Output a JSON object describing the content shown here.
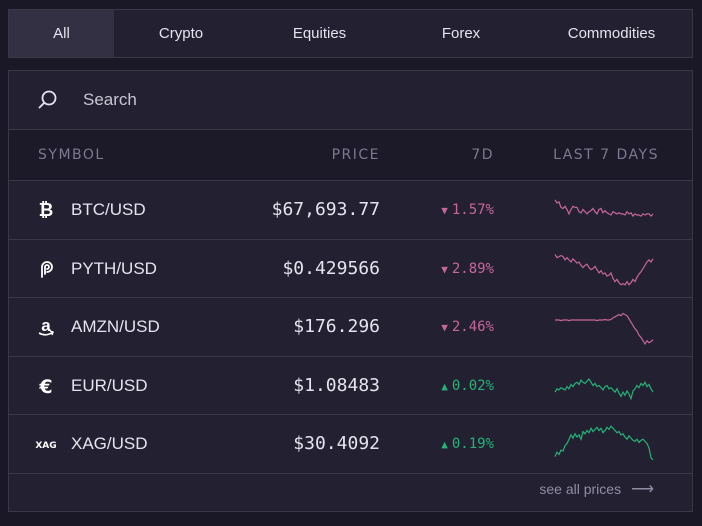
{
  "tabs": [
    "All",
    "Crypto",
    "Equities",
    "Forex",
    "Commodities"
  ],
  "search": {
    "placeholder": "Search"
  },
  "table": {
    "headers": {
      "symbol": "SYMBOL",
      "price": "PRICE",
      "change": "7D",
      "last": "LAST 7 DAYS"
    },
    "rows": [
      {
        "icon": "bitcoin-icon",
        "symbol": "BTC/USD",
        "price": "$67,693.77",
        "change": "1.57%",
        "direction": "down",
        "spark": [
          9,
          12,
          11,
          16,
          17,
          15,
          18,
          22,
          18,
          15,
          16,
          16,
          20,
          21,
          18,
          20,
          22,
          20,
          19,
          17,
          20,
          22,
          18,
          17,
          21,
          19,
          21,
          22,
          23,
          20,
          21,
          22,
          21,
          22,
          22,
          23,
          20,
          22,
          21,
          24,
          22,
          23,
          23,
          24,
          22,
          23,
          22,
          22,
          24,
          22
        ]
      },
      {
        "icon": "pyth-icon",
        "symbol": "PYTH/USD",
        "price": "$0.429566",
        "change": "2.89%",
        "direction": "down",
        "spark": [
          5,
          8,
          7,
          6,
          7,
          10,
          8,
          10,
          12,
          9,
          11,
          13,
          12,
          15,
          17,
          15,
          14,
          17,
          19,
          18,
          16,
          19,
          22,
          20,
          23,
          22,
          25,
          24,
          22,
          27,
          30,
          28,
          31,
          33,
          32,
          33,
          30,
          33,
          31,
          28,
          30,
          26,
          23,
          21,
          18,
          15,
          12,
          10,
          12,
          9
        ]
      },
      {
        "icon": "amazon-icon",
        "symbol": "AMZN/USD",
        "price": "$176.296",
        "change": "2.46%",
        "direction": "down",
        "spark": [
          12,
          12,
          12,
          12.5,
          12,
          12,
          12,
          12.5,
          12,
          12,
          12,
          12,
          12,
          12,
          12,
          12,
          12,
          12,
          12,
          12,
          12,
          12.5,
          12,
          12,
          12,
          11.5,
          12,
          12,
          11.5,
          10,
          9,
          8,
          7,
          8,
          6,
          7,
          8,
          11,
          14,
          17,
          20,
          22,
          26,
          28,
          31,
          34,
          31,
          33,
          32,
          30
        ]
      },
      {
        "icon": "euro-icon",
        "symbol": "EUR/USD",
        "price": "$1.08483",
        "change": "0.02%",
        "direction": "up",
        "spark": [
          24,
          21,
          22,
          20,
          21,
          22,
          19,
          21,
          17,
          19,
          16,
          15,
          17,
          13,
          15,
          16,
          14,
          12,
          15,
          18,
          16,
          19,
          18,
          20,
          22,
          19,
          18,
          21,
          20,
          22,
          24,
          21,
          25,
          28,
          24,
          27,
          23,
          26,
          30,
          23,
          21,
          18,
          20,
          16,
          18,
          15,
          19,
          17,
          21,
          24
        ]
      },
      {
        "icon": "silver-icon",
        "symbol": "XAG/USD",
        "price": "$30.4092",
        "change": "0.19%",
        "direction": "up",
        "spark": [
          30,
          26,
          28,
          24,
          25,
          20,
          18,
          14,
          10,
          13,
          9,
          12,
          10,
          14,
          7,
          9,
          6,
          8,
          4,
          7,
          5,
          3,
          6,
          4,
          8,
          6,
          3,
          5,
          2,
          4,
          6,
          8,
          7,
          10,
          9,
          12,
          14,
          11,
          13,
          15,
          16,
          14,
          17,
          15,
          14,
          16,
          18,
          22,
          31,
          33
        ]
      }
    ]
  },
  "footer": {
    "label": "see all prices",
    "arrow": "⟶"
  },
  "colors": {
    "down": "#c6669a",
    "up": "#24b277",
    "down_arrow": "▼",
    "up_arrow": "▲"
  }
}
